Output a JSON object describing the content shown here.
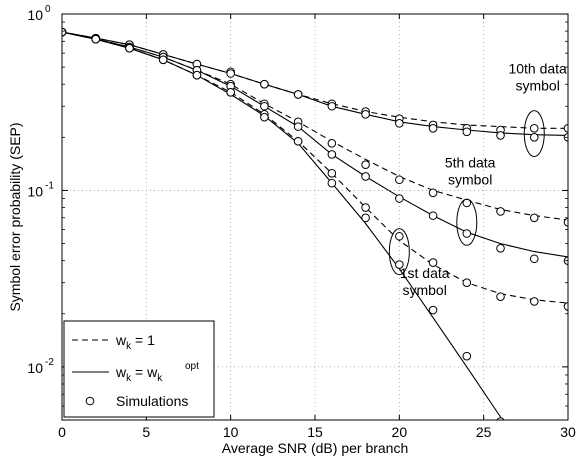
{
  "chart_data": {
    "type": "line",
    "title": "",
    "xlabel": "Average SNR (dB) per branch",
    "ylabel": "Symbol error probability (SEP)",
    "xlim": [
      0,
      30
    ],
    "ylim": [
      0.005,
      1
    ],
    "yscale": "log",
    "grid": true,
    "legend_position": "bottom-left",
    "x_ticks": [
      "0",
      "5",
      "10",
      "15",
      "20",
      "25",
      "30"
    ],
    "y_ticks": [
      {
        "base": "10",
        "exp": "-2",
        "value": 0.01
      },
      {
        "base": "10",
        "exp": "-1",
        "value": 0.1
      },
      {
        "base": "10",
        "exp": "0",
        "value": 1
      }
    ],
    "legend": [
      {
        "style": "dashed",
        "label_main": "w",
        "label_sub": "k",
        "label_rest": " = 1"
      },
      {
        "style": "solid",
        "label_main": "w",
        "label_sub": "k",
        "label_rest": " = w",
        "label_sub2": "k",
        "label_sup2": "opt"
      },
      {
        "style": "marker",
        "label_main": "Simulations"
      }
    ],
    "annotations": [
      {
        "lines": [
          "10th data",
          "symbol"
        ],
        "x": 28.2,
        "y": 0.46,
        "ellipse": {
          "x": 28,
          "y": 0.21
        }
      },
      {
        "lines": [
          "5th data",
          "symbol"
        ],
        "x": 24.2,
        "y": 0.135,
        "ellipse": {
          "x": 24,
          "y": 0.066
        }
      },
      {
        "lines": [
          "1st data",
          "symbol"
        ],
        "x": 21.5,
        "y": 0.032,
        "ellipse": {
          "x": 20,
          "y": 0.045
        }
      }
    ],
    "series": [
      {
        "style": "dashed",
        "x": [
          0,
          2,
          4,
          6,
          8,
          10,
          12,
          14,
          16,
          18,
          20,
          22,
          24,
          26,
          28,
          30
        ],
        "values": [
          0.79,
          0.73,
          0.67,
          0.59,
          0.52,
          0.46,
          0.4,
          0.35,
          0.31,
          0.28,
          0.26,
          0.245,
          0.235,
          0.23,
          0.225,
          0.225
        ]
      },
      {
        "style": "solid",
        "x": [
          0,
          2,
          4,
          6,
          8,
          10,
          12,
          14,
          16,
          18,
          20,
          22,
          24,
          26,
          28,
          30
        ],
        "values": [
          0.79,
          0.73,
          0.67,
          0.59,
          0.52,
          0.46,
          0.4,
          0.35,
          0.3,
          0.27,
          0.245,
          0.23,
          0.22,
          0.212,
          0.207,
          0.205
        ]
      },
      {
        "style": "markers",
        "x": [
          0,
          2,
          4,
          6,
          8,
          10,
          12,
          14,
          16,
          18,
          20,
          22,
          24,
          26,
          28,
          30
        ],
        "values": [
          0.79,
          0.73,
          0.67,
          0.59,
          0.52,
          0.47,
          0.4,
          0.35,
          0.31,
          0.28,
          0.255,
          0.235,
          0.225,
          0.22,
          0.225,
          0.225
        ]
      },
      {
        "style": "markers",
        "x": [
          0,
          2,
          4,
          6,
          8,
          10,
          12,
          14,
          16,
          18,
          20,
          22,
          24,
          26,
          28,
          30
        ],
        "values": [
          0.79,
          0.73,
          0.67,
          0.59,
          0.52,
          0.46,
          0.4,
          0.35,
          0.3,
          0.27,
          0.24,
          0.225,
          0.215,
          0.205,
          0.2,
          0.2
        ]
      },
      {
        "style": "dashed",
        "x": [
          0,
          2,
          4,
          6,
          8,
          10,
          12,
          14,
          16,
          18,
          20,
          22,
          24,
          26,
          28,
          30
        ],
        "values": [
          0.79,
          0.72,
          0.65,
          0.57,
          0.48,
          0.4,
          0.31,
          0.245,
          0.19,
          0.15,
          0.12,
          0.1,
          0.088,
          0.078,
          0.072,
          0.068
        ]
      },
      {
        "style": "solid",
        "x": [
          0,
          2,
          4,
          6,
          8,
          10,
          12,
          14,
          16,
          18,
          20,
          22,
          24,
          26,
          28,
          30
        ],
        "values": [
          0.79,
          0.72,
          0.65,
          0.57,
          0.48,
          0.39,
          0.3,
          0.23,
          0.16,
          0.12,
          0.092,
          0.072,
          0.058,
          0.05,
          0.045,
          0.042
        ]
      },
      {
        "style": "markers",
        "x": [
          0,
          2,
          4,
          6,
          8,
          10,
          12,
          14,
          16,
          18,
          20,
          22,
          24,
          26,
          28,
          30
        ],
        "values": [
          0.79,
          0.72,
          0.65,
          0.57,
          0.48,
          0.4,
          0.31,
          0.245,
          0.185,
          0.14,
          0.115,
          0.097,
          0.085,
          0.076,
          0.07,
          0.066
        ]
      },
      {
        "style": "markers",
        "x": [
          0,
          2,
          4,
          6,
          8,
          10,
          12,
          14,
          16,
          18,
          20,
          22,
          24,
          26,
          28,
          30
        ],
        "values": [
          0.79,
          0.72,
          0.65,
          0.57,
          0.48,
          0.39,
          0.3,
          0.23,
          0.16,
          0.12,
          0.09,
          0.072,
          0.057,
          0.047,
          0.041,
          0.04
        ]
      },
      {
        "style": "dashed",
        "x": [
          0,
          2,
          4,
          6,
          8,
          10,
          12,
          14,
          16,
          18,
          20,
          22,
          24,
          26,
          28,
          30
        ],
        "values": [
          0.79,
          0.72,
          0.64,
          0.55,
          0.45,
          0.36,
          0.27,
          0.19,
          0.125,
          0.08,
          0.052,
          0.038,
          0.03,
          0.026,
          0.024,
          0.023
        ]
      },
      {
        "style": "solid",
        "x": [
          0,
          2,
          4,
          6,
          8,
          10,
          12,
          14,
          16,
          18,
          20,
          22,
          24,
          26,
          27
        ],
        "values": [
          0.79,
          0.72,
          0.64,
          0.55,
          0.45,
          0.35,
          0.265,
          0.185,
          0.11,
          0.065,
          0.036,
          0.019,
          0.01,
          0.0052,
          0.0038
        ]
      },
      {
        "style": "markers",
        "x": [
          0,
          2,
          4,
          6,
          8,
          10,
          12,
          14,
          16,
          18,
          20,
          22,
          24,
          26,
          28,
          30
        ],
        "values": [
          0.79,
          0.72,
          0.64,
          0.55,
          0.45,
          0.36,
          0.27,
          0.19,
          0.125,
          0.08,
          0.055,
          0.039,
          0.03,
          0.025,
          0.0235,
          0.022
        ]
      },
      {
        "style": "markers",
        "x": [
          0,
          2,
          4,
          6,
          8,
          10,
          12,
          14,
          16,
          18,
          20,
          22,
          24,
          26
        ],
        "values": [
          0.79,
          0.72,
          0.64,
          0.55,
          0.45,
          0.36,
          0.26,
          0.19,
          0.11,
          0.07,
          0.038,
          0.021,
          0.0115,
          0.0049
        ]
      }
    ]
  }
}
